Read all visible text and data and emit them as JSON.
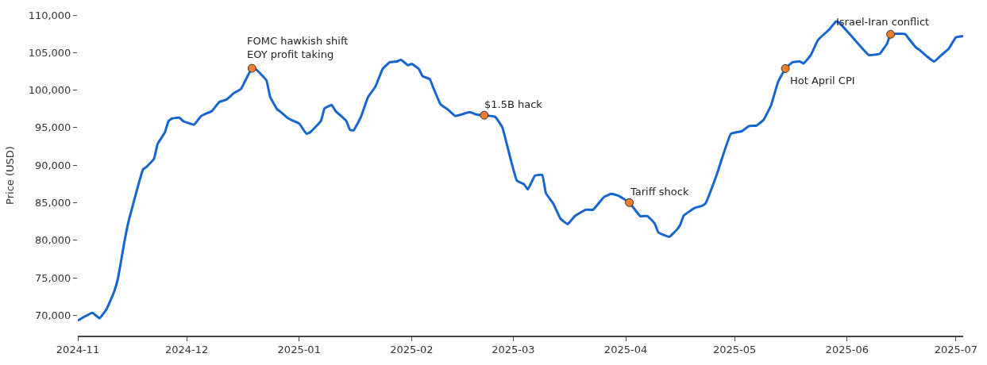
{
  "chart_data": {
    "type": "line",
    "ylabel": "Price (USD)",
    "xlim": [
      "2024-11-01",
      "2025-07-03"
    ],
    "ylim": [
      67300,
      110000
    ],
    "xticks": [
      {
        "value": "2024-11-01",
        "label": "2024-11"
      },
      {
        "value": "2024-12-01",
        "label": "2024-12"
      },
      {
        "value": "2025-01-01",
        "label": "2025-01"
      },
      {
        "value": "2025-02-01",
        "label": "2025-02"
      },
      {
        "value": "2025-03-01",
        "label": "2025-03"
      },
      {
        "value": "2025-04-01",
        "label": "2025-04"
      },
      {
        "value": "2025-05-01",
        "label": "2025-05"
      },
      {
        "value": "2025-06-01",
        "label": "2025-06"
      },
      {
        "value": "2025-07-01",
        "label": "2025-07"
      }
    ],
    "yticks": [
      {
        "value": 70000,
        "label": "70,000"
      },
      {
        "value": 75000,
        "label": "75,000"
      },
      {
        "value": 80000,
        "label": "80,000"
      },
      {
        "value": 85000,
        "label": "85,000"
      },
      {
        "value": 90000,
        "label": "90,000"
      },
      {
        "value": 95000,
        "label": "95,000"
      },
      {
        "value": 100000,
        "label": "100,000"
      },
      {
        "value": 105000,
        "label": "105,000"
      },
      {
        "value": 110000,
        "label": "110,000"
      }
    ],
    "series": [
      {
        "color": "#1565d0",
        "marker": "none",
        "x": [
          "2024-11-01",
          "2024-11-05",
          "2024-11-07",
          "2024-11-09",
          "2024-11-11",
          "2024-11-12",
          "2024-11-14",
          "2024-11-15",
          "2024-11-18",
          "2024-11-19",
          "2024-11-20",
          "2024-11-22",
          "2024-11-23",
          "2024-11-25",
          "2024-11-26",
          "2024-11-27",
          "2024-11-29",
          "2024-11-30",
          "2024-12-03",
          "2024-12-05",
          "2024-12-08",
          "2024-12-10",
          "2024-12-12",
          "2024-12-14",
          "2024-12-16",
          "2024-12-17",
          "2024-12-19",
          "2024-12-20",
          "2024-12-23",
          "2024-12-24",
          "2024-12-26",
          "2024-12-27",
          "2024-12-29",
          "2025-01-01",
          "2025-01-03",
          "2025-01-04",
          "2025-01-07",
          "2025-01-08",
          "2025-01-10",
          "2025-01-11",
          "2025-01-14",
          "2025-01-15",
          "2025-01-16",
          "2025-01-18",
          "2025-01-20",
          "2025-01-22",
          "2025-01-24",
          "2025-01-26",
          "2025-01-28",
          "2025-01-29",
          "2025-01-31",
          "2025-02-01",
          "2025-02-03",
          "2025-02-04",
          "2025-02-06",
          "2025-02-07",
          "2025-02-09",
          "2025-02-11",
          "2025-02-13",
          "2025-02-17",
          "2025-02-19",
          "2025-02-21",
          "2025-02-24",
          "2025-02-26",
          "2025-02-28",
          "2025-03-02",
          "2025-03-04",
          "2025-03-05",
          "2025-03-07",
          "2025-03-09",
          "2025-03-10",
          "2025-03-12",
          "2025-03-14",
          "2025-03-16",
          "2025-03-18",
          "2025-03-21",
          "2025-03-23",
          "2025-03-26",
          "2025-03-28",
          "2025-03-30",
          "2025-04-02",
          "2025-04-05",
          "2025-04-07",
          "2025-04-09",
          "2025-04-10",
          "2025-04-13",
          "2025-04-15",
          "2025-04-16",
          "2025-04-17",
          "2025-04-20",
          "2025-04-22",
          "2025-04-23",
          "2025-04-26",
          "2025-04-30",
          "2025-05-03",
          "2025-05-05",
          "2025-05-07",
          "2025-05-09",
          "2025-05-11",
          "2025-05-13",
          "2025-05-15",
          "2025-05-17",
          "2025-05-19",
          "2025-05-20",
          "2025-05-22",
          "2025-05-24",
          "2025-05-27",
          "2025-05-29",
          "2025-05-30",
          "2025-06-01",
          "2025-06-07",
          "2025-06-10",
          "2025-06-12",
          "2025-06-13",
          "2025-06-17",
          "2025-06-18",
          "2025-06-20",
          "2025-06-21",
          "2025-06-23",
          "2025-06-25",
          "2025-06-27",
          "2025-06-29",
          "2025-07-01",
          "2025-07-03"
        ],
        "values": [
          69300,
          70330,
          69620,
          70900,
          73140,
          74790,
          80220,
          82560,
          87950,
          89470,
          89800,
          90860,
          92850,
          94370,
          95890,
          96230,
          96330,
          95890,
          95390,
          96560,
          97240,
          98420,
          98760,
          99600,
          100180,
          101120,
          102910,
          102810,
          101290,
          99100,
          97410,
          97070,
          96230,
          95550,
          94200,
          94370,
          95890,
          97570,
          98020,
          97240,
          95890,
          94710,
          94640,
          96400,
          99100,
          100450,
          102810,
          103720,
          103820,
          104060,
          103320,
          103490,
          102810,
          101870,
          101460,
          100280,
          98080,
          97410,
          96560,
          97070,
          96730,
          96670,
          96460,
          95040,
          91330,
          87950,
          87450,
          86770,
          88630,
          88700,
          86270,
          84920,
          82890,
          82150,
          83230,
          84070,
          84070,
          85760,
          86200,
          85930,
          85020,
          83230,
          83230,
          82220,
          81040,
          80460,
          81370,
          82050,
          83300,
          84310,
          84580,
          84920,
          88630,
          94200,
          94540,
          95210,
          95280,
          96050,
          97920,
          101120,
          102880,
          103720,
          103820,
          103550,
          104670,
          106690,
          108040,
          109160,
          108890,
          107870,
          104670,
          104840,
          106180,
          107440,
          107470,
          106860,
          105680,
          105340,
          104500,
          103820,
          104670,
          105510,
          107030,
          107200
        ]
      },
      {
        "type": "scatter",
        "color": "#f07d2c",
        "marker": "circle",
        "x": [
          "2024-12-19",
          "2025-02-21",
          "2025-04-02",
          "2025-05-15",
          "2025-06-13"
        ],
        "values": [
          102910,
          96670,
          85020,
          102880,
          107440
        ]
      }
    ],
    "annotations": [
      {
        "text": "FOMC hawkish shift\nEOY profit taking",
        "x": "2024-12-19",
        "y": 102910
      },
      {
        "text": "$1.5B hack",
        "x": "2025-02-21",
        "y": 96670
      },
      {
        "text": "Tariff shock",
        "x": "2025-04-02",
        "y": 85020
      },
      {
        "text": "Hot April CPI",
        "x": "2025-05-15",
        "y": 102880
      },
      {
        "text": "Israel-Iran conflict",
        "x": "2025-06-13",
        "y": 107440
      }
    ]
  }
}
